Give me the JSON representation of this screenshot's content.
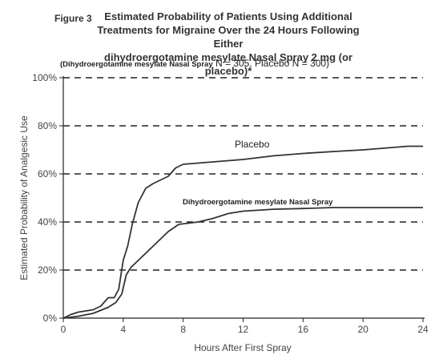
{
  "figure": {
    "label": "Figure 3",
    "title_lines": [
      "Estimated Probability of Patients Using Additional",
      "Treatments for Migraine Over the 24 Hours Following Either",
      "dihydroergotamine mesylate  Nasal Spray 2 mg (or placebo)*"
    ],
    "subtitle_prefix": "(Dihydroergotamine mesylate Nasal Spray",
    "subtitle_rest": " N = 305, Placebo N = 300)"
  },
  "chart_data": {
    "type": "line",
    "xlabel": "Hours After First Spray",
    "ylabel": "Estimated Probability of Analgesic Use",
    "xlim": [
      0,
      24
    ],
    "ylim": [
      0,
      100
    ],
    "x_ticks": [
      0,
      4,
      8,
      12,
      16,
      20,
      24
    ],
    "y_ticks": [
      0,
      20,
      40,
      60,
      80,
      100
    ],
    "y_tick_labels": [
      "0%",
      "20%",
      "40%",
      "60%",
      "80%",
      "100%"
    ],
    "grid": "horizontal-dashed",
    "series": [
      {
        "name": "Placebo",
        "color": "#333333",
        "points": [
          [
            0,
            0
          ],
          [
            0.5,
            1.5
          ],
          [
            1,
            2.5
          ],
          [
            2,
            3.5
          ],
          [
            2.5,
            5
          ],
          [
            3,
            8.5
          ],
          [
            3.4,
            8.5
          ],
          [
            3.7,
            12
          ],
          [
            4,
            24
          ],
          [
            4.3,
            30
          ],
          [
            4.6,
            39
          ],
          [
            5,
            48
          ],
          [
            5.5,
            54
          ],
          [
            6,
            56
          ],
          [
            7,
            59
          ],
          [
            7.5,
            62.5
          ],
          [
            8,
            64
          ],
          [
            10,
            65
          ],
          [
            12,
            66
          ],
          [
            14,
            67.5
          ],
          [
            16,
            68.5
          ],
          [
            18,
            69.3
          ],
          [
            20,
            70
          ],
          [
            22,
            71
          ],
          [
            23,
            71.5
          ],
          [
            24,
            71.5
          ]
        ]
      },
      {
        "name": "Dihydroergotamine mesylate Nasal Spray",
        "color": "#333333",
        "points": [
          [
            0,
            0
          ],
          [
            1,
            0.8
          ],
          [
            2,
            2
          ],
          [
            3,
            4.5
          ],
          [
            3.5,
            6.5
          ],
          [
            3.9,
            10
          ],
          [
            4.2,
            18
          ],
          [
            4.5,
            21
          ],
          [
            5,
            24
          ],
          [
            6,
            30
          ],
          [
            7,
            36
          ],
          [
            7.7,
            39
          ],
          [
            9,
            40
          ],
          [
            10,
            41.5
          ],
          [
            11,
            43.5
          ],
          [
            12,
            44.5
          ],
          [
            14,
            45.3
          ],
          [
            16,
            45.6
          ],
          [
            18,
            46
          ],
          [
            20,
            46
          ],
          [
            22,
            46
          ],
          [
            24,
            46
          ]
        ]
      }
    ]
  }
}
